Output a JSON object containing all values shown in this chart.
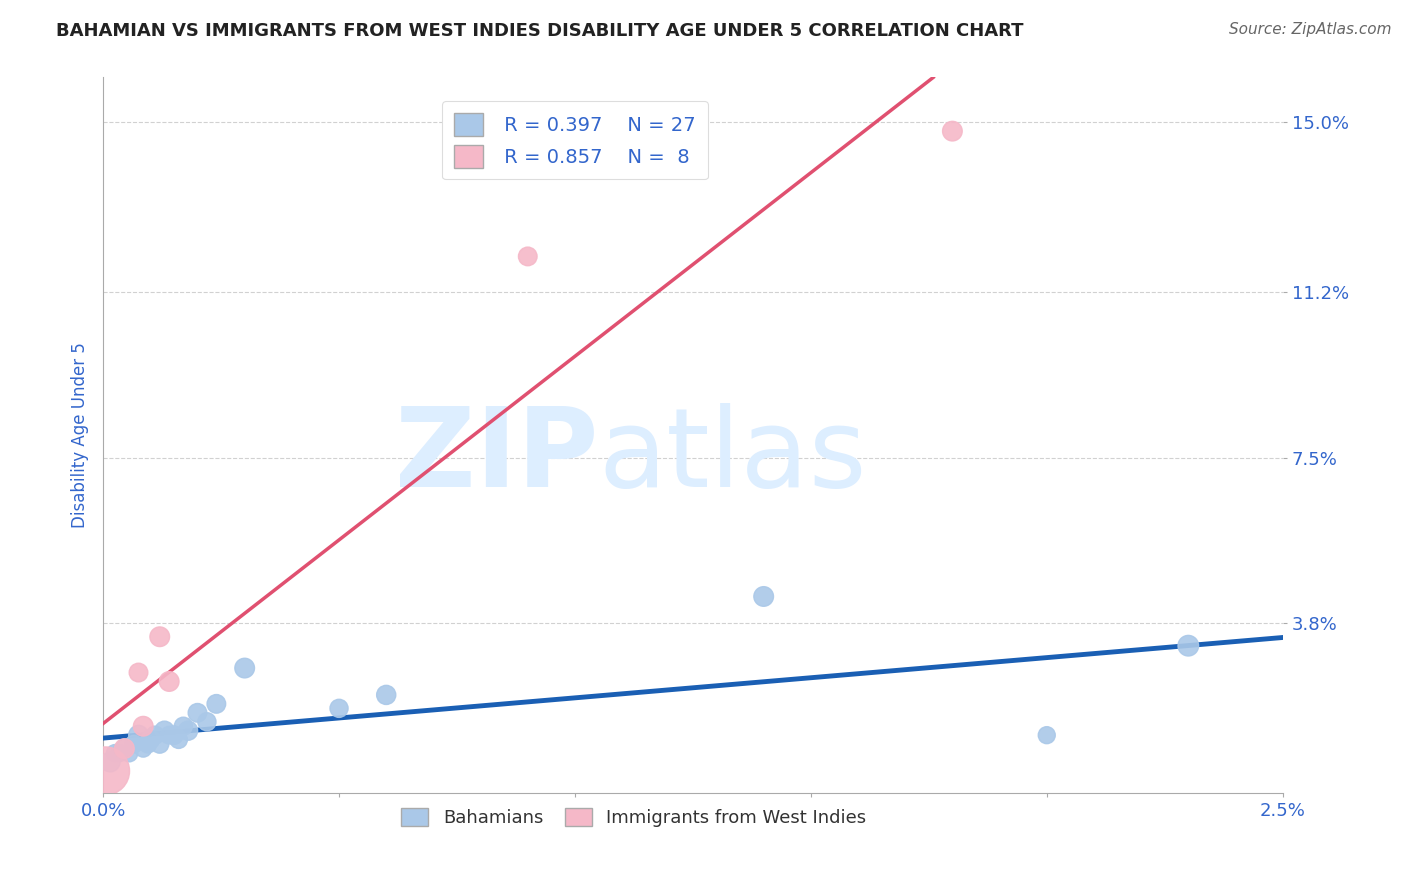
{
  "title": "BAHAMIAN VS IMMIGRANTS FROM WEST INDIES DISABILITY AGE UNDER 5 CORRELATION CHART",
  "source": "Source: ZipAtlas.com",
  "ylabel": "Disability Age Under 5",
  "xlim": [
    0.0,
    0.025
  ],
  "ylim": [
    0.0,
    0.16
  ],
  "xticks": [
    0.0,
    0.005,
    0.01,
    0.015,
    0.02,
    0.025
  ],
  "xticklabels": [
    "0.0%",
    "",
    "",
    "",
    "",
    "2.5%"
  ],
  "yticks": [
    0.038,
    0.075,
    0.112,
    0.15
  ],
  "yticklabels": [
    "3.8%",
    "7.5%",
    "11.2%",
    "15.0%"
  ],
  "bahamians": {
    "x": [
      0.00015,
      0.00025,
      0.00035,
      0.00045,
      0.00055,
      0.00065,
      0.00075,
      0.00085,
      0.00095,
      0.001,
      0.0011,
      0.0012,
      0.0013,
      0.0014,
      0.0015,
      0.0016,
      0.0017,
      0.0018,
      0.002,
      0.0022,
      0.0024,
      0.003,
      0.005,
      0.006,
      0.014,
      0.02,
      0.023
    ],
    "y": [
      0.007,
      0.009,
      0.009,
      0.01,
      0.009,
      0.011,
      0.013,
      0.01,
      0.011,
      0.012,
      0.013,
      0.011,
      0.014,
      0.013,
      0.013,
      0.012,
      0.015,
      0.014,
      0.018,
      0.016,
      0.02,
      0.028,
      0.019,
      0.022,
      0.044,
      0.013,
      0.033
    ],
    "sizes": [
      200,
      150,
      150,
      180,
      160,
      160,
      200,
      150,
      160,
      180,
      170,
      170,
      190,
      160,
      180,
      160,
      170,
      190,
      180,
      170,
      180,
      200,
      170,
      190,
      200,
      150,
      220
    ],
    "color": "#aac8e8",
    "edge_color": "#aac8e8",
    "line_color": "#1a5fb4",
    "R": 0.397,
    "N": 27
  },
  "west_indies": {
    "x": [
      5e-05,
      0.00045,
      0.00075,
      0.00085,
      0.0012,
      0.0014,
      0.009,
      0.018
    ],
    "y": [
      0.005,
      0.01,
      0.027,
      0.015,
      0.035,
      0.025,
      0.12,
      0.148
    ],
    "sizes": [
      1200,
      200,
      180,
      200,
      200,
      200,
      180,
      200
    ],
    "color": "#f5b8c8",
    "edge_color": "#f5b8c8",
    "line_color": "#e05070",
    "R": 0.857,
    "N": 8
  },
  "legend_blue_color": "#aac8e8",
  "legend_pink_color": "#f5b8c8",
  "title_color": "#222222",
  "tick_color": "#3366cc",
  "watermark_zip": "ZIP",
  "watermark_atlas": "atlas",
  "watermark_color": "#ddeeff",
  "grid_color": "#cccccc",
  "background_color": "#ffffff"
}
